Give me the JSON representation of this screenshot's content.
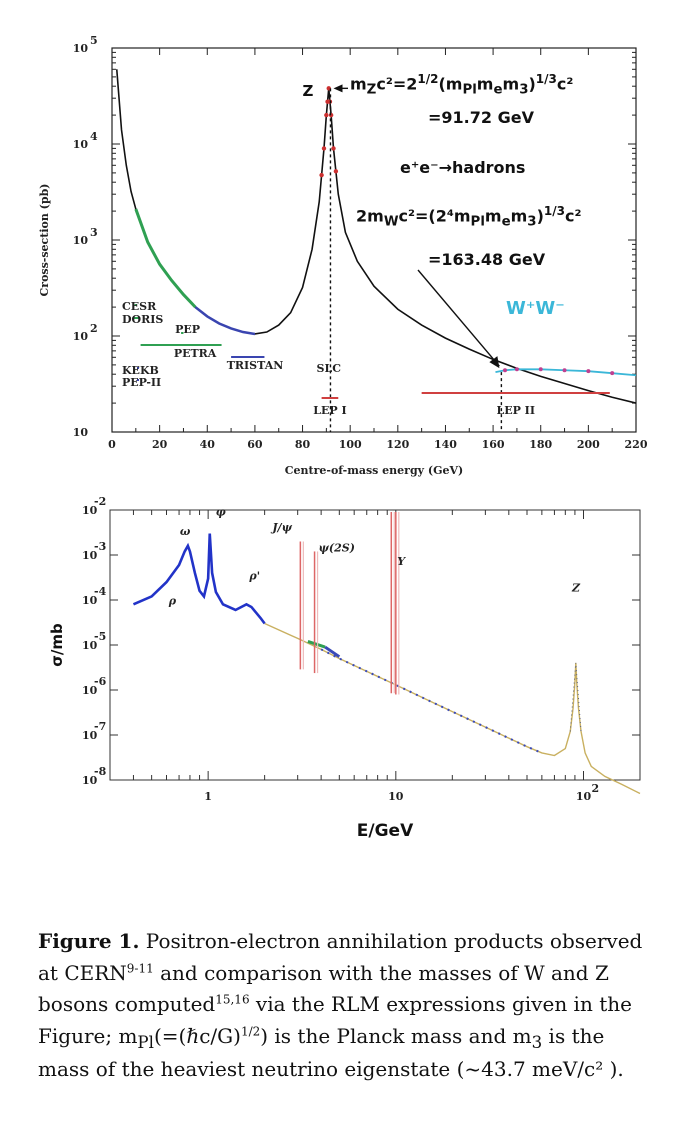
{
  "chart_data": [
    {
      "type": "line",
      "xlabel": "Centre-of-mass energy (GeV)",
      "ylabel": "Cross-section (pb)",
      "xlim": [
        0,
        220
      ],
      "ylim": [
        10,
        100000
      ],
      "yscale": "log",
      "xticks": [
        "0",
        "20",
        "40",
        "60",
        "80",
        "100",
        "120",
        "140",
        "160",
        "180",
        "200",
        "220"
      ],
      "yticks": [
        "10",
        "10",
        "10",
        "10",
        "10"
      ],
      "yexps": [
        "",
        "2",
        "3",
        "4",
        "5"
      ],
      "curve": {
        "x": [
          2,
          4,
          6,
          8,
          10,
          15,
          20,
          25,
          30,
          35,
          40,
          45,
          50,
          55,
          60,
          65,
          70,
          75,
          80,
          84,
          87,
          89,
          90,
          91,
          92,
          93,
          95,
          98,
          103,
          110,
          120,
          130,
          140,
          150,
          160,
          170,
          180,
          190,
          200,
          210,
          220
        ],
        "y": [
          60000,
          14000,
          6000,
          3200,
          2100,
          950,
          560,
          380,
          270,
          200,
          160,
          135,
          120,
          110,
          105,
          110,
          130,
          175,
          320,
          800,
          2500,
          9000,
          20000,
          38000,
          20000,
          9000,
          3000,
          1200,
          600,
          330,
          190,
          130,
          95,
          73,
          57,
          46,
          38,
          32,
          27,
          23,
          20
        ]
      },
      "ww_curve": {
        "x": [
          161,
          165,
          170,
          180,
          190,
          200,
          210,
          220
        ],
        "y": [
          42,
          44,
          45,
          45,
          44,
          43,
          41,
          39
        ]
      },
      "experiments": [
        {
          "name": "CESR",
          "x": [
            9.5,
            10.5
          ]
        },
        {
          "name": "DORIS",
          "x": [
            9,
            11.5
          ]
        },
        {
          "name": "PEP",
          "x": [
            29,
            30
          ]
        },
        {
          "name": "PETRA",
          "x": [
            12,
            46
          ]
        },
        {
          "name": "TRISTAN",
          "x": [
            50,
            64
          ]
        },
        {
          "name": "KEKB",
          "x": [
            10.5,
            11
          ]
        },
        {
          "name": "PEP-II",
          "x": [
            10.5,
            11
          ]
        },
        {
          "name": "SLC",
          "x": [
            91,
            91
          ]
        },
        {
          "name": "LEP I",
          "x": [
            88,
            95
          ]
        },
        {
          "name": "LEP II",
          "x": [
            130,
            209
          ]
        }
      ],
      "labels": {
        "z": "Z",
        "mz_formula": "m<sub>Z</sub>c²=2<sup>1/2</sup>(m<sub>Pl</sub>m<sub>e</sub>m<sub>3</sub>)<sup>1/3</sup>c²",
        "mz_value": "=91.72 GeV",
        "process": "e⁺e⁻→hadrons",
        "mw_formula": "2m<sub>W</sub>c²=(2⁴m<sub>Pl</sub>m<sub>e</sub>m<sub>3</sub>)<sup>1/3</sup>c²",
        "mw_value": "=163.48 GeV",
        "ww": "W⁺W⁻"
      },
      "z_line_x": 91.72,
      "w_line_x": 163.48
    },
    {
      "type": "line",
      "xlabel": "E/GeV",
      "ylabel": "σ/mb",
      "xlim": [
        0.3,
        200
      ],
      "ylim": [
        1e-08,
        0.01
      ],
      "xscale": "log",
      "yscale": "log",
      "xticks": [
        "1",
        "10",
        "10"
      ],
      "xexps": [
        "",
        "",
        "2"
      ],
      "yticks": [
        "10",
        "10",
        "10",
        "10",
        "10",
        "10",
        "10"
      ],
      "yexps": [
        "-2",
        "-3",
        "-4",
        "-5",
        "-6",
        "-7",
        "-8"
      ],
      "low_data": {
        "x": [
          0.4,
          0.5,
          0.6,
          0.7,
          0.75,
          0.78,
          0.8,
          0.85,
          0.9,
          0.95,
          1.0,
          1.02,
          1.05,
          1.1,
          1.2,
          1.4,
          1.6,
          1.7,
          1.9,
          2.0
        ],
        "y": [
          8e-05,
          0.00012,
          0.00025,
          0.0006,
          0.0012,
          0.0016,
          0.0012,
          0.0004,
          0.00016,
          0.00012,
          0.0003,
          0.003,
          0.0004,
          0.00015,
          8e-05,
          6e-05,
          8e-05,
          7e-05,
          4e-05,
          3e-05
        ]
      },
      "fit_line": {
        "x": [
          2,
          3,
          4,
          5,
          7,
          10,
          15,
          20,
          30,
          40,
          50,
          60,
          70,
          80,
          85,
          88,
          90,
          91,
          92,
          94,
          97,
          102,
          110,
          130,
          160,
          200
        ],
        "y": [
          3e-05,
          1.4e-05,
          8e-06,
          5e-06,
          2.6e-06,
          1.3e-06,
          5.8e-07,
          3.3e-07,
          1.5e-07,
          8.5e-08,
          5.5e-08,
          4e-08,
          3.5e-08,
          5e-08,
          1.2e-07,
          4e-07,
          1.5e-06,
          4e-06,
          1.5e-06,
          4e-07,
          1.2e-07,
          4e-08,
          2e-08,
          1.2e-08,
          8e-09,
          5e-09
        ]
      },
      "resonances": [
        {
          "name": "ω",
          "x": 0.78,
          "y": 0.0025
        },
        {
          "name": "φ",
          "x": 1.02,
          "y": 0.003
        },
        {
          "name": "ρ",
          "x": 0.68,
          "y": 0.00018
        },
        {
          "name": "ρ'",
          "x": 1.7,
          "y": 0.00021
        },
        {
          "name": "J/ψ",
          "x": 3.1,
          "y": 0.0025
        },
        {
          "name": "ψ(2S)",
          "x": 3.69,
          "y": 0.0012
        },
        {
          "name": "Υ",
          "x": 9.46,
          "y": 0.0006
        },
        {
          "name": "Z",
          "x": 91.2,
          "y": 3e-05
        }
      ]
    }
  ],
  "caption": {
    "label": "Figure 1.",
    "text": "Positron-electron annihilation products observed at CERN<sup>9-11</sup> and comparison with the masses of W and Z bosons computed<sup>15,16</sup> via the RLM expressions given in the Figure; m<sub>Pl</sub>(=(ℏc/G)<sup>1/2</sup>) is the Planck mass and m<sub>3</sub> is the mass of the heaviest neutrino eigenstate (~43.7 meV/c² )."
  }
}
